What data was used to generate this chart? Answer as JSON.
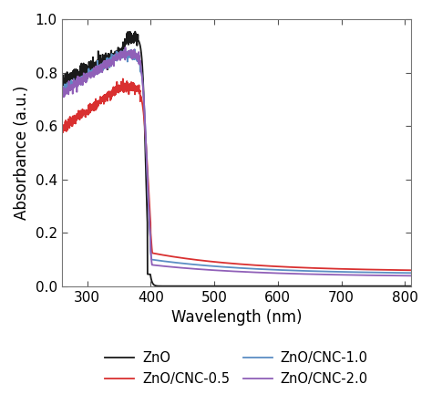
{
  "title": "",
  "xlabel": "Wavelength (nm)",
  "ylabel": "Absorbance (a.u.)",
  "xlim": [
    260,
    810
  ],
  "ylim": [
    0.0,
    1.0
  ],
  "xticks": [
    300,
    400,
    500,
    600,
    700,
    800
  ],
  "yticks": [
    0.0,
    0.2,
    0.4,
    0.6,
    0.8,
    1.0
  ],
  "series": [
    {
      "label": "ZnO",
      "color": "#1a1a1a",
      "lw": 1.3
    },
    {
      "label": "ZnO/CNC-0.5",
      "color": "#d93030",
      "lw": 1.3
    },
    {
      "label": "ZnO/CNC-1.0",
      "color": "#5b8ec4",
      "lw": 1.3
    },
    {
      "label": "ZnO/CNC-2.0",
      "color": "#9060b8",
      "lw": 1.3
    }
  ],
  "font_size": 12,
  "tick_font_size": 11,
  "legend_fontsize": 10.5
}
